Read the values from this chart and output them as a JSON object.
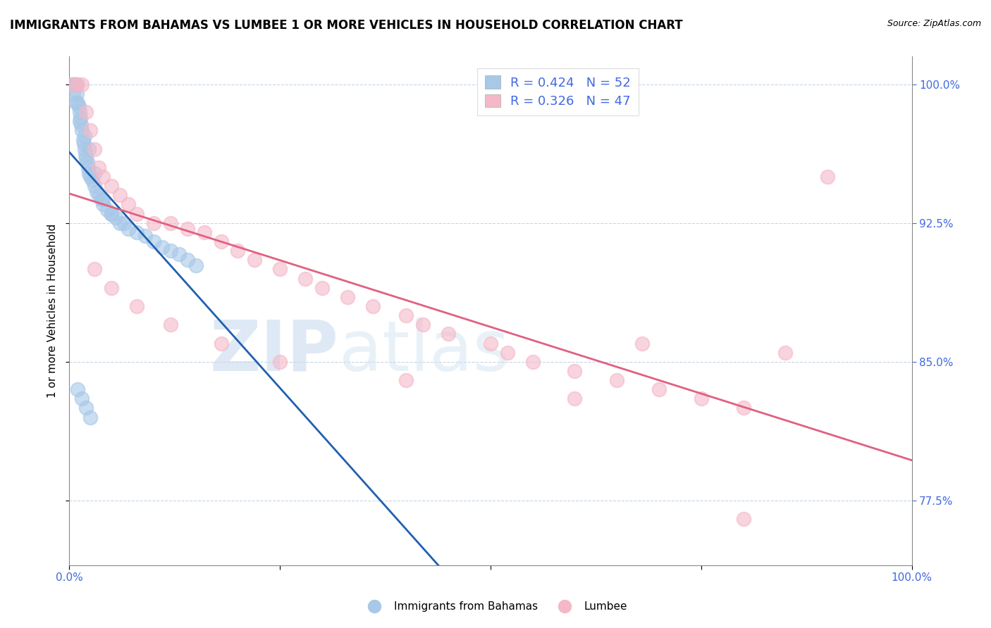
{
  "title": "IMMIGRANTS FROM BAHAMAS VS LUMBEE 1 OR MORE VEHICLES IN HOUSEHOLD CORRELATION CHART",
  "source": "Source: ZipAtlas.com",
  "xmin": 0.0,
  "xmax": 100.0,
  "ymin": 74.0,
  "ymax": 101.5,
  "yticks": [
    77.5,
    85.0,
    92.5,
    100.0
  ],
  "ytick_labels": [
    "77.5%",
    "85.0%",
    "92.5%",
    "100.0%"
  ],
  "legend_entry1": "R = 0.424   N = 52",
  "legend_entry2": "R = 0.326   N = 47",
  "color_blue": "#a8c8e8",
  "color_pink": "#f4b8c8",
  "trend_color_blue": "#2060b0",
  "trend_color_pink": "#e06080",
  "watermark_zip": "ZIP",
  "watermark_atlas": "atlas",
  "title_fontsize": 12,
  "axis_label_color": "#4169e1",
  "blue_x": [
    0.3,
    0.5,
    0.7,
    0.8,
    0.9,
    1.0,
    1.1,
    1.2,
    1.3,
    1.4,
    1.5,
    1.6,
    1.7,
    1.8,
    1.9,
    2.0,
    2.1,
    2.2,
    2.3,
    2.5,
    2.7,
    3.0,
    3.2,
    3.5,
    3.8,
    4.0,
    4.5,
    5.0,
    5.5,
    6.0,
    6.5,
    7.0,
    8.0,
    9.0,
    10.0,
    11.0,
    12.0,
    13.0,
    14.0,
    15.0,
    1.0,
    1.5,
    2.0,
    2.5,
    0.5,
    0.8,
    1.2,
    1.8,
    2.3,
    3.0,
    4.0,
    5.0
  ],
  "blue_y": [
    100.0,
    100.0,
    100.0,
    100.0,
    99.5,
    99.0,
    98.8,
    98.5,
    98.2,
    97.8,
    97.5,
    97.0,
    96.8,
    96.5,
    96.2,
    96.0,
    95.8,
    95.5,
    95.2,
    95.0,
    94.8,
    94.5,
    94.2,
    94.0,
    93.8,
    93.5,
    93.2,
    93.0,
    92.8,
    92.5,
    92.5,
    92.2,
    92.0,
    91.8,
    91.5,
    91.2,
    91.0,
    90.8,
    90.5,
    90.2,
    83.5,
    83.0,
    82.5,
    82.0,
    99.5,
    99.0,
    98.0,
    97.2,
    96.5,
    95.2,
    93.8,
    93.0
  ],
  "pink_x": [
    0.5,
    1.0,
    1.5,
    2.0,
    2.5,
    3.0,
    3.5,
    4.0,
    5.0,
    6.0,
    7.0,
    8.0,
    10.0,
    12.0,
    14.0,
    16.0,
    18.0,
    20.0,
    22.0,
    25.0,
    28.0,
    30.0,
    33.0,
    36.0,
    40.0,
    42.0,
    45.0,
    50.0,
    52.0,
    55.0,
    60.0,
    65.0,
    68.0,
    70.0,
    75.0,
    80.0,
    85.0,
    90.0,
    3.0,
    5.0,
    8.0,
    12.0,
    18.0,
    25.0,
    40.0,
    60.0,
    80.0
  ],
  "pink_y": [
    100.0,
    100.0,
    100.0,
    98.5,
    97.5,
    96.5,
    95.5,
    95.0,
    94.5,
    94.0,
    93.5,
    93.0,
    92.5,
    92.5,
    92.2,
    92.0,
    91.5,
    91.0,
    90.5,
    90.0,
    89.5,
    89.0,
    88.5,
    88.0,
    87.5,
    87.0,
    86.5,
    86.0,
    85.5,
    85.0,
    84.5,
    84.0,
    86.0,
    83.5,
    83.0,
    82.5,
    85.5,
    95.0,
    90.0,
    89.0,
    88.0,
    87.0,
    86.0,
    85.0,
    84.0,
    83.0,
    76.5
  ]
}
